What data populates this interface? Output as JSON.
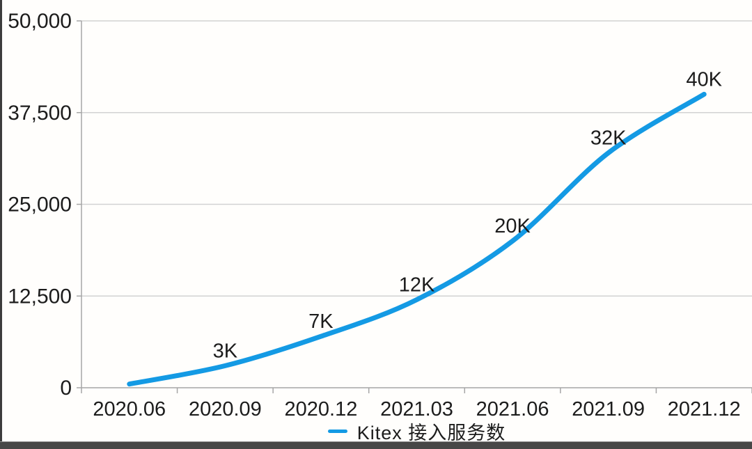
{
  "chart_data": {
    "type": "line",
    "title": "",
    "categories": [
      "2020.06",
      "2020.09",
      "2020.12",
      "2021.03",
      "2021.06",
      "2021.09",
      "2021.12"
    ],
    "series": [
      {
        "name": "Kitex 接入服务数",
        "color": "#149ae4",
        "values": [
          500,
          3000,
          7000,
          12000,
          20000,
          32000,
          40000
        ]
      }
    ],
    "point_labels": [
      "",
      "3K",
      "7K",
      "12K",
      "20K",
      "32K",
      "40K"
    ],
    "y_ticks": [
      0,
      12500,
      25000,
      37500,
      50000
    ],
    "y_tick_labels": [
      "0",
      "12,500",
      "25,000",
      "37,500",
      "50,000"
    ],
    "ylim": [
      0,
      50000
    ],
    "xlabel": "",
    "ylabel": "",
    "grid": true,
    "legend_position": "bottom",
    "colors": {
      "grid": "#d2d2d2",
      "axis": "#a6a6a6",
      "text": "#1c1c1c"
    }
  },
  "legend": {
    "label": "Kitex 接入服务数"
  }
}
